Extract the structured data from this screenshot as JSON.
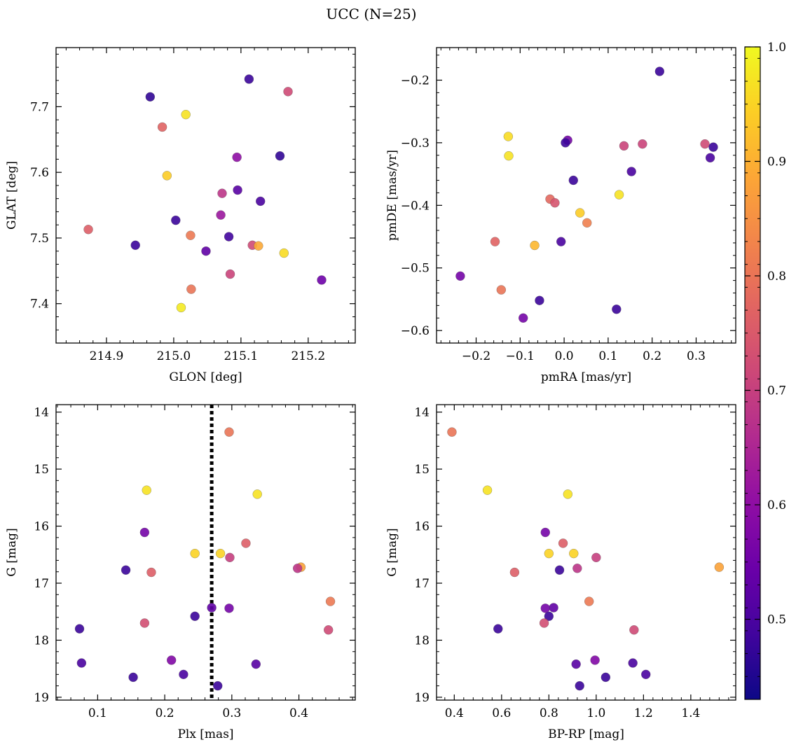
{
  "figure": {
    "title": "UCC (N=25)"
  },
  "colorbar": {
    "ticks": [
      0.5,
      0.6,
      0.7,
      0.8,
      0.9,
      1.0
    ],
    "tick_labels": [
      "0.5",
      "0.6",
      "0.7",
      "0.8",
      "0.9",
      "1.0"
    ],
    "range": [
      0.43,
      1.0
    ],
    "colormap": "plasma"
  },
  "chart_data": [
    {
      "type": "scatter",
      "xlabel": "GLON [deg]",
      "ylabel": "GLAT [deg]",
      "xlim": [
        214.825,
        215.27
      ],
      "ylim": [
        7.34,
        7.79
      ],
      "xticks": [
        214.9,
        215.0,
        215.1,
        215.2
      ],
      "xtick_labels": [
        "214.9",
        "215.0",
        "215.1",
        "215.2"
      ],
      "yticks": [
        7.4,
        7.5,
        7.6,
        7.7
      ],
      "ytick_labels": [
        "7.4",
        "7.5",
        "7.6",
        "7.7"
      ],
      "y_inverted": false,
      "points": [
        {
          "x": 214.965,
          "y": 7.715,
          "c": 0.47
        },
        {
          "x": 215.112,
          "y": 7.742,
          "c": 0.48
        },
        {
          "x": 215.17,
          "y": 7.723,
          "c": 0.72
        },
        {
          "x": 214.983,
          "y": 7.669,
          "c": 0.77
        },
        {
          "x": 215.018,
          "y": 7.688,
          "c": 0.97
        },
        {
          "x": 215.158,
          "y": 7.625,
          "c": 0.47
        },
        {
          "x": 215.094,
          "y": 7.623,
          "c": 0.6
        },
        {
          "x": 214.99,
          "y": 7.595,
          "c": 0.94
        },
        {
          "x": 215.095,
          "y": 7.573,
          "c": 0.52
        },
        {
          "x": 215.072,
          "y": 7.568,
          "c": 0.68
        },
        {
          "x": 215.129,
          "y": 7.556,
          "c": 0.5
        },
        {
          "x": 215.07,
          "y": 7.535,
          "c": 0.62
        },
        {
          "x": 215.003,
          "y": 7.527,
          "c": 0.48
        },
        {
          "x": 214.873,
          "y": 7.513,
          "c": 0.76
        },
        {
          "x": 215.025,
          "y": 7.504,
          "c": 0.81
        },
        {
          "x": 215.082,
          "y": 7.502,
          "c": 0.49
        },
        {
          "x": 214.943,
          "y": 7.489,
          "c": 0.48
        },
        {
          "x": 215.117,
          "y": 7.489,
          "c": 0.72
        },
        {
          "x": 215.126,
          "y": 7.488,
          "c": 0.89
        },
        {
          "x": 215.048,
          "y": 7.48,
          "c": 0.53
        },
        {
          "x": 215.164,
          "y": 7.477,
          "c": 0.96
        },
        {
          "x": 215.084,
          "y": 7.445,
          "c": 0.71
        },
        {
          "x": 215.22,
          "y": 7.436,
          "c": 0.55
        },
        {
          "x": 215.026,
          "y": 7.422,
          "c": 0.8
        },
        {
          "x": 215.011,
          "y": 7.394,
          "c": 0.98
        }
      ]
    },
    {
      "type": "scatter",
      "xlabel": "pmRA [mas/yr]",
      "ylabel": "pmDE [mas/yr]",
      "xlim": [
        -0.29,
        0.39
      ],
      "ylim": [
        -0.62,
        -0.148
      ],
      "xticks": [
        -0.2,
        -0.1,
        0.0,
        0.1,
        0.2,
        0.3
      ],
      "xtick_labels": [
        "−0.2",
        "−0.1",
        "0.0",
        "0.1",
        "0.2",
        "0.3"
      ],
      "yticks": [
        -0.6,
        -0.5,
        -0.4,
        -0.3,
        -0.2
      ],
      "ytick_labels": [
        "−0.6",
        "−0.5",
        "−0.4",
        "−0.3",
        "−0.2"
      ],
      "y_inverted": false,
      "points": [
        {
          "x": 0.217,
          "y": -0.186,
          "c": 0.48
        },
        {
          "x": -0.127,
          "y": -0.29,
          "c": 0.96
        },
        {
          "x": 0.008,
          "y": -0.296,
          "c": 0.56
        },
        {
          "x": 0.003,
          "y": -0.3,
          "c": 0.48
        },
        {
          "x": 0.136,
          "y": -0.305,
          "c": 0.71
        },
        {
          "x": 0.178,
          "y": -0.302,
          "c": 0.71
        },
        {
          "x": 0.32,
          "y": -0.302,
          "c": 0.72
        },
        {
          "x": 0.339,
          "y": -0.307,
          "c": 0.48
        },
        {
          "x": -0.126,
          "y": -0.321,
          "c": 0.97
        },
        {
          "x": 0.332,
          "y": -0.324,
          "c": 0.5
        },
        {
          "x": 0.153,
          "y": -0.346,
          "c": 0.5
        },
        {
          "x": 0.021,
          "y": -0.36,
          "c": 0.48
        },
        {
          "x": 0.125,
          "y": -0.383,
          "c": 0.97
        },
        {
          "x": -0.032,
          "y": -0.39,
          "c": 0.78
        },
        {
          "x": -0.021,
          "y": -0.396,
          "c": 0.74
        },
        {
          "x": 0.036,
          "y": -0.412,
          "c": 0.94
        },
        {
          "x": 0.052,
          "y": -0.428,
          "c": 0.82
        },
        {
          "x": -0.157,
          "y": -0.458,
          "c": 0.77
        },
        {
          "x": -0.007,
          "y": -0.458,
          "c": 0.5
        },
        {
          "x": -0.067,
          "y": -0.464,
          "c": 0.91
        },
        {
          "x": -0.236,
          "y": -0.513,
          "c": 0.56
        },
        {
          "x": -0.143,
          "y": -0.535,
          "c": 0.8
        },
        {
          "x": -0.056,
          "y": -0.552,
          "c": 0.48
        },
        {
          "x": 0.119,
          "y": -0.566,
          "c": 0.48
        },
        {
          "x": -0.093,
          "y": -0.58,
          "c": 0.56
        }
      ]
    },
    {
      "type": "scatter",
      "xlabel": "Plx [mas]",
      "ylabel": "G [mag]",
      "xlim": [
        0.038,
        0.484
      ],
      "ylim": [
        19.05,
        13.87
      ],
      "xticks": [
        0.1,
        0.2,
        0.3,
        0.4
      ],
      "xtick_labels": [
        "0.1",
        "0.2",
        "0.3",
        "0.4"
      ],
      "yticks": [
        14,
        15,
        16,
        17,
        18,
        19
      ],
      "ytick_labels": [
        "14",
        "15",
        "16",
        "17",
        "18",
        "19"
      ],
      "y_inverted": true,
      "vline": {
        "x": 0.27,
        "style": "dotted",
        "color": "#000000"
      },
      "points": [
        {
          "x": 0.296,
          "y": 14.35,
          "c": 0.8
        },
        {
          "x": 0.173,
          "y": 15.37,
          "c": 0.97
        },
        {
          "x": 0.338,
          "y": 15.44,
          "c": 0.97
        },
        {
          "x": 0.17,
          "y": 16.11,
          "c": 0.56
        },
        {
          "x": 0.321,
          "y": 16.3,
          "c": 0.76
        },
        {
          "x": 0.245,
          "y": 16.48,
          "c": 0.95
        },
        {
          "x": 0.283,
          "y": 16.48,
          "c": 0.95
        },
        {
          "x": 0.297,
          "y": 16.55,
          "c": 0.7
        },
        {
          "x": 0.403,
          "y": 16.72,
          "c": 0.88
        },
        {
          "x": 0.398,
          "y": 16.74,
          "c": 0.68
        },
        {
          "x": 0.142,
          "y": 16.77,
          "c": 0.48
        },
        {
          "x": 0.18,
          "y": 16.81,
          "c": 0.76
        },
        {
          "x": 0.447,
          "y": 17.32,
          "c": 0.81
        },
        {
          "x": 0.27,
          "y": 17.43,
          "c": 0.53
        },
        {
          "x": 0.296,
          "y": 17.44,
          "c": 0.56
        },
        {
          "x": 0.245,
          "y": 17.58,
          "c": 0.48
        },
        {
          "x": 0.17,
          "y": 17.7,
          "c": 0.73
        },
        {
          "x": 0.073,
          "y": 17.8,
          "c": 0.48
        },
        {
          "x": 0.444,
          "y": 17.82,
          "c": 0.72
        },
        {
          "x": 0.21,
          "y": 18.35,
          "c": 0.58
        },
        {
          "x": 0.076,
          "y": 18.4,
          "c": 0.5
        },
        {
          "x": 0.336,
          "y": 18.42,
          "c": 0.52
        },
        {
          "x": 0.228,
          "y": 18.6,
          "c": 0.5
        },
        {
          "x": 0.153,
          "y": 18.65,
          "c": 0.48
        },
        {
          "x": 0.279,
          "y": 18.8,
          "c": 0.48
        }
      ]
    },
    {
      "type": "scatter",
      "xlabel": "BP-RP [mag]",
      "ylabel": "G [mag]",
      "xlim": [
        0.325,
        1.59
      ],
      "ylim": [
        19.05,
        13.87
      ],
      "xticks": [
        0.4,
        0.6,
        0.8,
        1.0,
        1.2,
        1.4
      ],
      "xtick_labels": [
        "0.4",
        "0.6",
        "0.8",
        "1.0",
        "1.2",
        "1.4"
      ],
      "yticks": [
        14,
        15,
        16,
        17,
        18,
        19
      ],
      "ytick_labels": [
        "14",
        "15",
        "16",
        "17",
        "18",
        "19"
      ],
      "y_inverted": true,
      "points": [
        {
          "x": 0.39,
          "y": 14.35,
          "c": 0.8
        },
        {
          "x": 0.54,
          "y": 15.37,
          "c": 0.97
        },
        {
          "x": 0.88,
          "y": 15.44,
          "c": 0.97
        },
        {
          "x": 0.785,
          "y": 16.11,
          "c": 0.56
        },
        {
          "x": 0.86,
          "y": 16.3,
          "c": 0.76
        },
        {
          "x": 0.8,
          "y": 16.48,
          "c": 0.95
        },
        {
          "x": 0.905,
          "y": 16.48,
          "c": 0.95
        },
        {
          "x": 1.0,
          "y": 16.55,
          "c": 0.7
        },
        {
          "x": 1.52,
          "y": 16.72,
          "c": 0.88
        },
        {
          "x": 0.92,
          "y": 16.74,
          "c": 0.68
        },
        {
          "x": 0.845,
          "y": 16.77,
          "c": 0.48
        },
        {
          "x": 0.655,
          "y": 16.81,
          "c": 0.76
        },
        {
          "x": 0.97,
          "y": 17.32,
          "c": 0.81
        },
        {
          "x": 0.82,
          "y": 17.43,
          "c": 0.53
        },
        {
          "x": 0.785,
          "y": 17.44,
          "c": 0.56
        },
        {
          "x": 0.8,
          "y": 17.58,
          "c": 0.48
        },
        {
          "x": 0.78,
          "y": 17.7,
          "c": 0.73
        },
        {
          "x": 0.585,
          "y": 17.8,
          "c": 0.48
        },
        {
          "x": 1.16,
          "y": 17.82,
          "c": 0.72
        },
        {
          "x": 0.995,
          "y": 18.35,
          "c": 0.58
        },
        {
          "x": 1.155,
          "y": 18.4,
          "c": 0.5
        },
        {
          "x": 0.915,
          "y": 18.42,
          "c": 0.52
        },
        {
          "x": 1.21,
          "y": 18.6,
          "c": 0.5
        },
        {
          "x": 1.04,
          "y": 18.65,
          "c": 0.48
        },
        {
          "x": 0.93,
          "y": 18.8,
          "c": 0.48
        }
      ]
    }
  ]
}
